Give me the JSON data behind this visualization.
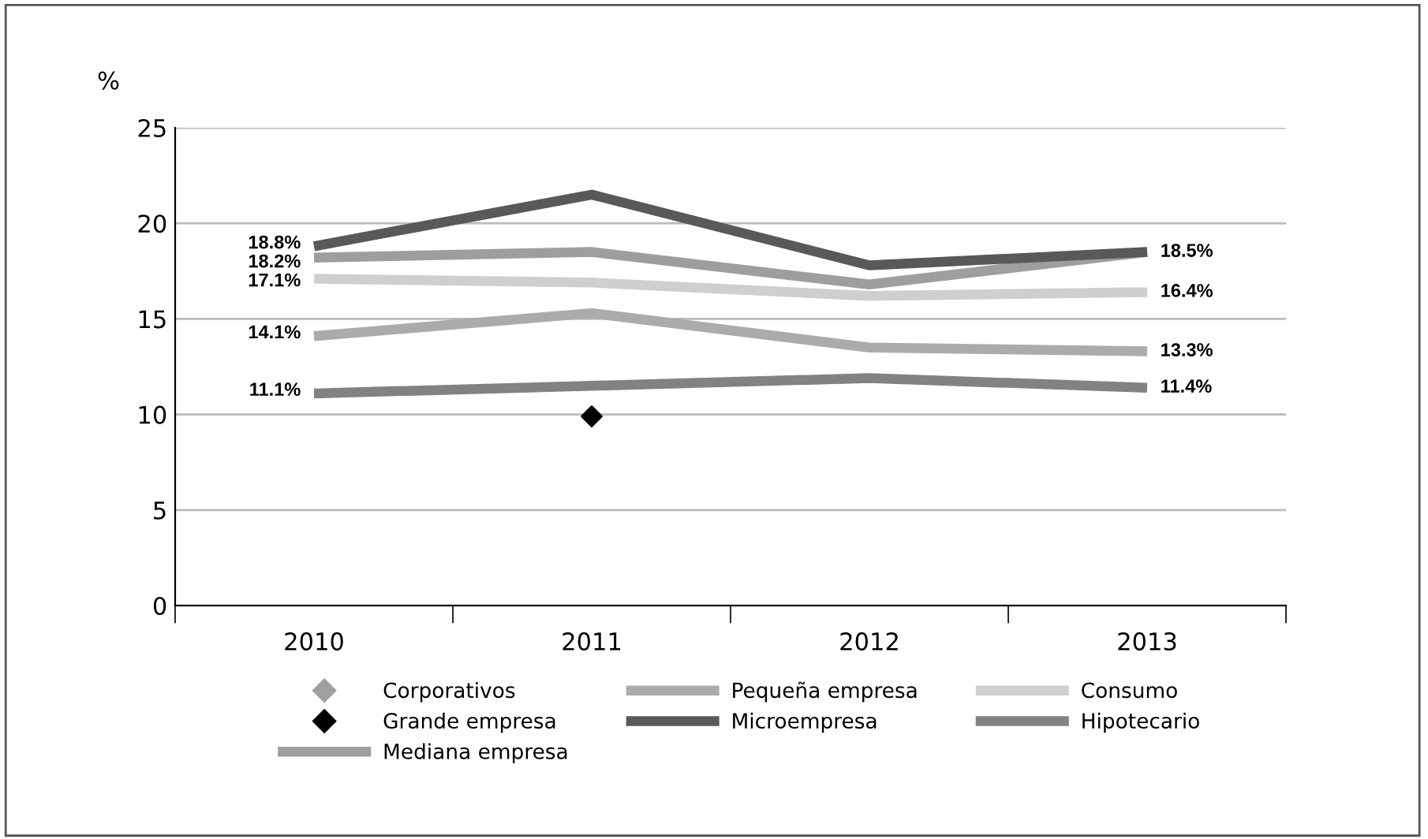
{
  "chart_data": {
    "type": "line",
    "ylabel": "%",
    "categories": [
      "2010",
      "2011",
      "2012",
      "2013"
    ],
    "ylim": [
      0,
      25
    ],
    "yticks": [
      0,
      5,
      10,
      15,
      20,
      25
    ],
    "grid": "y",
    "legend": "bottom",
    "line_style": "solid",
    "series": [
      {
        "name": "Corporativos",
        "type": "scatter",
        "marker": "diamond",
        "color": "#a0a0a0",
        "values": [
          null,
          null,
          null,
          null
        ]
      },
      {
        "name": "Grande empresa",
        "type": "scatter",
        "marker": "diamond",
        "color": "#000000",
        "values": [
          null,
          9.9,
          null,
          null
        ]
      },
      {
        "name": "Mediana empresa",
        "color": "#9e9e9e",
        "values": [
          18.2,
          18.5,
          16.8,
          18.5
        ],
        "value_labels": [
          "18.2%",
          null,
          null,
          null
        ]
      },
      {
        "name": "Pequeña empresa",
        "color": "#ababab",
        "values": [
          14.1,
          15.3,
          13.5,
          13.3
        ],
        "value_labels": [
          "14.1%",
          null,
          null,
          "13.3%"
        ]
      },
      {
        "name": "Microempresa",
        "color": "#595959",
        "values": [
          18.8,
          21.5,
          17.8,
          18.5
        ],
        "value_labels": [
          "18.8%",
          null,
          null,
          "18.5%"
        ]
      },
      {
        "name": "Consumo",
        "color": "#cfcfcf",
        "values": [
          17.1,
          16.9,
          16.2,
          16.4
        ],
        "value_labels": [
          "17.1%",
          null,
          null,
          "16.4%"
        ]
      },
      {
        "name": "Hipotecario",
        "color": "#828282",
        "values": [
          11.1,
          11.5,
          11.9,
          11.4
        ],
        "value_labels": [
          "11.1%",
          null,
          null,
          "11.4%"
        ]
      }
    ]
  }
}
